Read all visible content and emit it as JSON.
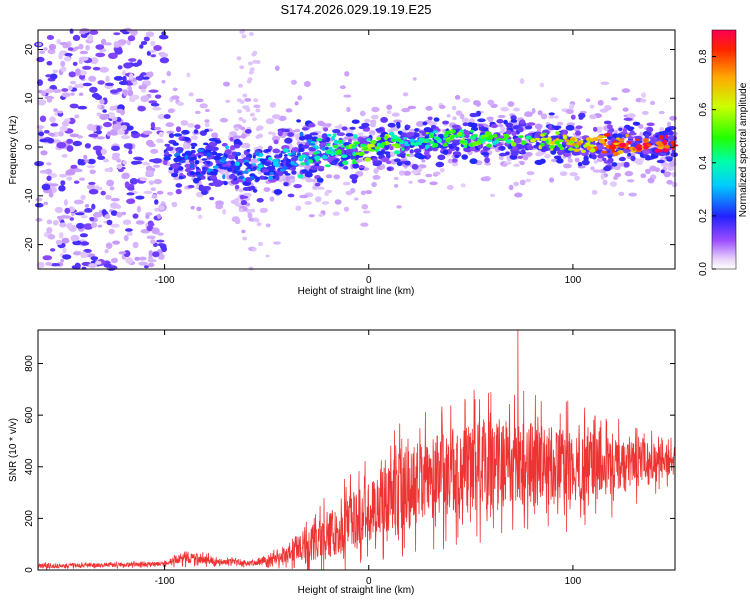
{
  "title": "S174.2026.029.19.19.E25",
  "colors": {
    "axis": "#000000",
    "snr_line": "#ee3333",
    "spec_point": "#5a00ff",
    "spec_faint": "#c9a8f5",
    "background": "#ffffff"
  },
  "chart_data": [
    {
      "type": "scatter",
      "name": "spectrogram",
      "title": "S174.2026.029.19.19.E25",
      "xlabel": "Height of straight line (km)",
      "ylabel": "Frequency (Hz)",
      "xlim": [
        -162,
        150
      ],
      "ylim": [
        -25,
        24
      ],
      "xticks": [
        -100,
        0,
        100
      ],
      "yticks": [
        -20,
        -10,
        0,
        10,
        20
      ],
      "colorbar": {
        "label": "Normalized spectral amplitude",
        "range": [
          0,
          0.9
        ],
        "ticks": [
          "0.0",
          "0.2",
          "0.4",
          "0.6",
          "0.8"
        ],
        "colormap": "rainbow (purple low → red high)"
      },
      "ridge": {
        "description": "frequency centre of high-amplitude band vs height",
        "x": [
          -100,
          -80,
          -60,
          -40,
          -20,
          0,
          20,
          40,
          60,
          80,
          100,
          120,
          140,
          150
        ],
        "y": [
          -1,
          -3,
          -4,
          -3,
          -1,
          0,
          1,
          2,
          2,
          1.5,
          1,
          0.5,
          0.5,
          0.5
        ],
        "amplitude": [
          0.2,
          0.2,
          0.25,
          0.3,
          0.4,
          0.55,
          0.45,
          0.5,
          0.45,
          0.55,
          0.65,
          0.8,
          0.85,
          0.85
        ]
      }
    },
    {
      "type": "line",
      "name": "snr",
      "xlabel": "Height of straight line (km)",
      "ylabel": "SNR (10 * v/v)",
      "xlim": [
        -162,
        150
      ],
      "ylim": [
        0,
        930
      ],
      "xticks": [
        -100,
        0,
        100
      ],
      "yticks": [
        0,
        200,
        400,
        600,
        800
      ],
      "series": [
        {
          "name": "SNR",
          "envelope_x": [
            -162,
            -120,
            -100,
            -90,
            -80,
            -60,
            -45,
            -35,
            -25,
            -15,
            -5,
            5,
            15,
            25,
            40,
            60,
            72,
            80,
            100,
            120,
            140,
            150
          ],
          "mean": [
            15,
            20,
            25,
            50,
            40,
            25,
            45,
            80,
            110,
            160,
            200,
            260,
            300,
            340,
            380,
            400,
            410,
            410,
            400,
            400,
            420,
            430
          ],
          "spread": [
            15,
            15,
            15,
            40,
            30,
            15,
            40,
            80,
            150,
            180,
            200,
            240,
            300,
            280,
            300,
            320,
            300,
            300,
            250,
            200,
            130,
            100
          ],
          "peak": {
            "x": 73,
            "y": 930
          }
        }
      ]
    }
  ]
}
